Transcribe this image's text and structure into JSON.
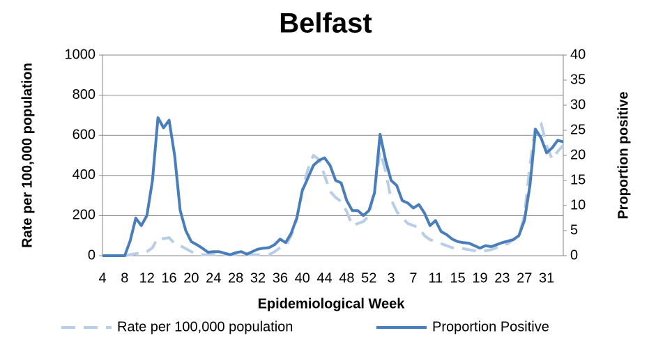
{
  "chart_data": {
    "type": "line",
    "title": "Belfast",
    "x_label": "Epidemiological Week",
    "y_label": "Rate per 100,000 population",
    "y2_label": "Proportion positive",
    "categories": [
      "4",
      null,
      null,
      null,
      "8",
      null,
      null,
      null,
      "12",
      null,
      null,
      null,
      "16",
      null,
      null,
      null,
      "20",
      null,
      null,
      null,
      "24",
      null,
      null,
      null,
      "28",
      null,
      null,
      null,
      "32",
      null,
      null,
      null,
      "36",
      null,
      null,
      null,
      "40",
      null,
      null,
      null,
      "44",
      null,
      null,
      null,
      "48",
      null,
      null,
      null,
      "52",
      null,
      null,
      null,
      "3",
      null,
      null,
      null,
      "7",
      null,
      null,
      null,
      "11",
      null,
      null,
      null,
      "15",
      null,
      null,
      null,
      "19",
      null,
      null,
      null,
      "23",
      null,
      null,
      null,
      "27",
      null,
      null,
      null,
      "31",
      null,
      null,
      null
    ],
    "ylim": [
      0,
      1000
    ],
    "yticks": [
      0,
      200,
      400,
      600,
      800,
      1000
    ],
    "y2lim": [
      0,
      40
    ],
    "y2ticks": [
      0,
      5,
      10,
      15,
      20,
      25,
      30,
      35,
      40
    ],
    "series": [
      {
        "name": "Rate per 100,000 population",
        "color": "#b9cde5",
        "dashed": true,
        "values": [
          0,
          0,
          0,
          0,
          0,
          5,
          10,
          15,
          20,
          40,
          90,
          85,
          90,
          60,
          50,
          35,
          20,
          10,
          5,
          5,
          5,
          5,
          5,
          5,
          5,
          5,
          5,
          5,
          5,
          5,
          5,
          20,
          40,
          50,
          100,
          180,
          330,
          430,
          500,
          480,
          400,
          320,
          290,
          270,
          220,
          150,
          160,
          170,
          200,
          330,
          520,
          420,
          280,
          220,
          190,
          160,
          150,
          140,
          100,
          80,
          70,
          60,
          50,
          40,
          35,
          35,
          30,
          25,
          20,
          25,
          30,
          40,
          50,
          60,
          80,
          100,
          200,
          450,
          650,
          660,
          550,
          480,
          520,
          550
        ]
      },
      {
        "name": "Proportion Positive",
        "color": "#4a7ebb",
        "axis": "y2",
        "values": [
          0,
          0,
          0,
          0,
          0,
          3,
          7.5,
          6,
          8,
          15,
          27.5,
          25.5,
          27,
          20,
          9,
          5,
          2.8,
          2.2,
          1.5,
          0.7,
          0.8,
          0.8,
          0.5,
          0.2,
          0.6,
          0.8,
          0.3,
          0.8,
          1.3,
          1.5,
          1.6,
          2.2,
          3.3,
          2.6,
          4.5,
          7.5,
          13,
          15.5,
          18,
          19,
          19.5,
          18,
          15,
          14.5,
          11,
          9,
          9,
          8,
          9,
          12.5,
          24.2,
          19,
          15,
          14,
          11,
          10.5,
          9.5,
          10.2,
          8.5,
          6,
          7,
          4.8,
          4.2,
          3.3,
          2.8,
          2.6,
          2.5,
          2,
          1.5,
          2,
          1.8,
          2.2,
          2.6,
          2.9,
          3.2,
          4,
          7,
          14,
          25.2,
          23.5,
          20.5,
          21.5,
          23,
          22.7
        ]
      }
    ]
  }
}
